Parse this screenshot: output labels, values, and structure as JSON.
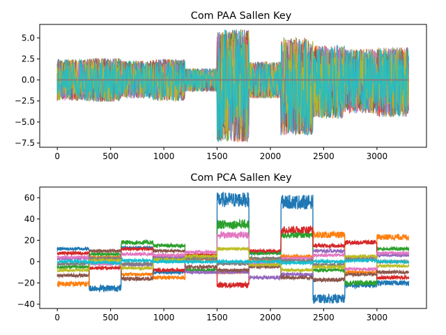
{
  "palette": [
    "#1f77b4",
    "#ff7f0e",
    "#2ca02c",
    "#d62728",
    "#9467bd",
    "#8c564b",
    "#e377c2",
    "#7f7f7f",
    "#bcbd22",
    "#17becf"
  ],
  "chart_data": [
    {
      "type": "line",
      "title": "Com PAA Sallen Key",
      "xlabel": "",
      "ylabel": "",
      "xlim": [
        -165,
        3465
      ],
      "ylim": [
        -8.0,
        6.6
      ],
      "xticks": [
        0,
        500,
        1000,
        1500,
        2000,
        2500,
        3000
      ],
      "xtick_labels": [
        "0",
        "500",
        "1000",
        "1500",
        "2000",
        "2500",
        "3000"
      ],
      "yticks": [
        -7.5,
        -5.0,
        -2.5,
        0.0,
        2.5,
        5.0
      ],
      "ytick_labels": [
        "−7.5",
        "−5.0",
        "−2.5",
        "0.0",
        "2.5",
        "5.0"
      ],
      "n_series": 10,
      "segments": [
        {
          "x": [
            0,
            300
          ],
          "min": -2.5,
          "max": 2.5
        },
        {
          "x": [
            300,
            600
          ],
          "min": -2.6,
          "max": 2.6
        },
        {
          "x": [
            600,
            900
          ],
          "min": -2.2,
          "max": 2.3
        },
        {
          "x": [
            900,
            1200
          ],
          "min": -2.5,
          "max": 2.5
        },
        {
          "x": [
            1200,
            1500
          ],
          "min": -1.4,
          "max": 1.4
        },
        {
          "x": [
            1500,
            1800
          ],
          "min": -7.4,
          "max": 6.0
        },
        {
          "x": [
            1800,
            2100
          ],
          "min": -2.2,
          "max": 2.2
        },
        {
          "x": [
            2100,
            2400
          ],
          "min": -6.6,
          "max": 5.1
        },
        {
          "x": [
            2400,
            2700
          ],
          "min": -4.6,
          "max": 4.1
        },
        {
          "x": [
            2700,
            3000
          ],
          "min": -4.0,
          "max": 3.7
        },
        {
          "x": [
            3000,
            3300
          ],
          "min": -4.4,
          "max": 3.9
        }
      ],
      "grid": false,
      "legend": "none"
    },
    {
      "type": "line",
      "title": "Com PCA Sallen Key",
      "xlabel": "",
      "ylabel": "",
      "xlim": [
        -165,
        3465
      ],
      "ylim": [
        -44,
        70
      ],
      "xticks": [
        0,
        500,
        1000,
        1500,
        2000,
        2500,
        3000
      ],
      "xtick_labels": [
        "0",
        "500",
        "1000",
        "1500",
        "2000",
        "2500",
        "3000"
      ],
      "yticks": [
        -40,
        -20,
        0,
        20,
        40,
        60
      ],
      "ytick_labels": [
        "−40",
        "−20",
        "0",
        "20",
        "40",
        "60"
      ],
      "n_series": 10,
      "series_levels": [
        {
          "name": "",
          "color_index": 0,
          "levels": [
            12,
            -25,
            13,
            -10,
            5,
            58,
            8,
            56,
            -35,
            -22,
            -20
          ]
        },
        {
          "name": "",
          "color_index": 1,
          "levels": [
            -21,
            4,
            -12,
            -15,
            2,
            -10,
            2,
            5,
            25,
            -10,
            23
          ]
        },
        {
          "name": "",
          "color_index": 2,
          "levels": [
            -5,
            7,
            18,
            15,
            -8,
            35,
            8,
            25,
            -8,
            -20,
            12
          ]
        },
        {
          "name": "",
          "color_index": 3,
          "levels": [
            8,
            -6,
            12,
            -8,
            6,
            -22,
            10,
            30,
            15,
            18,
            -15
          ]
        },
        {
          "name": "",
          "color_index": 4,
          "levels": [
            3,
            2,
            -3,
            4,
            -10,
            -10,
            -15,
            -12,
            10,
            4,
            6
          ]
        },
        {
          "name": "",
          "color_index": 5,
          "levels": [
            -13,
            10,
            -16,
            10,
            -5,
            -8,
            -5,
            -15,
            -17,
            -12,
            -10
          ]
        },
        {
          "name": "",
          "color_index": 6,
          "levels": [
            4,
            -2,
            7,
            6,
            9,
            25,
            -2,
            3,
            6,
            -7,
            8
          ]
        },
        {
          "name": "",
          "color_index": 7,
          "levels": [
            -2,
            3,
            -2,
            2,
            3,
            -2,
            3,
            1,
            -3,
            2,
            0
          ]
        },
        {
          "name": "",
          "color_index": 8,
          "levels": [
            -8,
            1,
            -6,
            2,
            5,
            12,
            -3,
            -8,
            -5,
            5,
            -4
          ]
        },
        {
          "name": "",
          "color_index": 9,
          "levels": [
            0,
            -1,
            1,
            0,
            0,
            0,
            0,
            -1,
            0,
            1,
            0
          ]
        }
      ],
      "grid": false,
      "legend": "none"
    }
  ]
}
